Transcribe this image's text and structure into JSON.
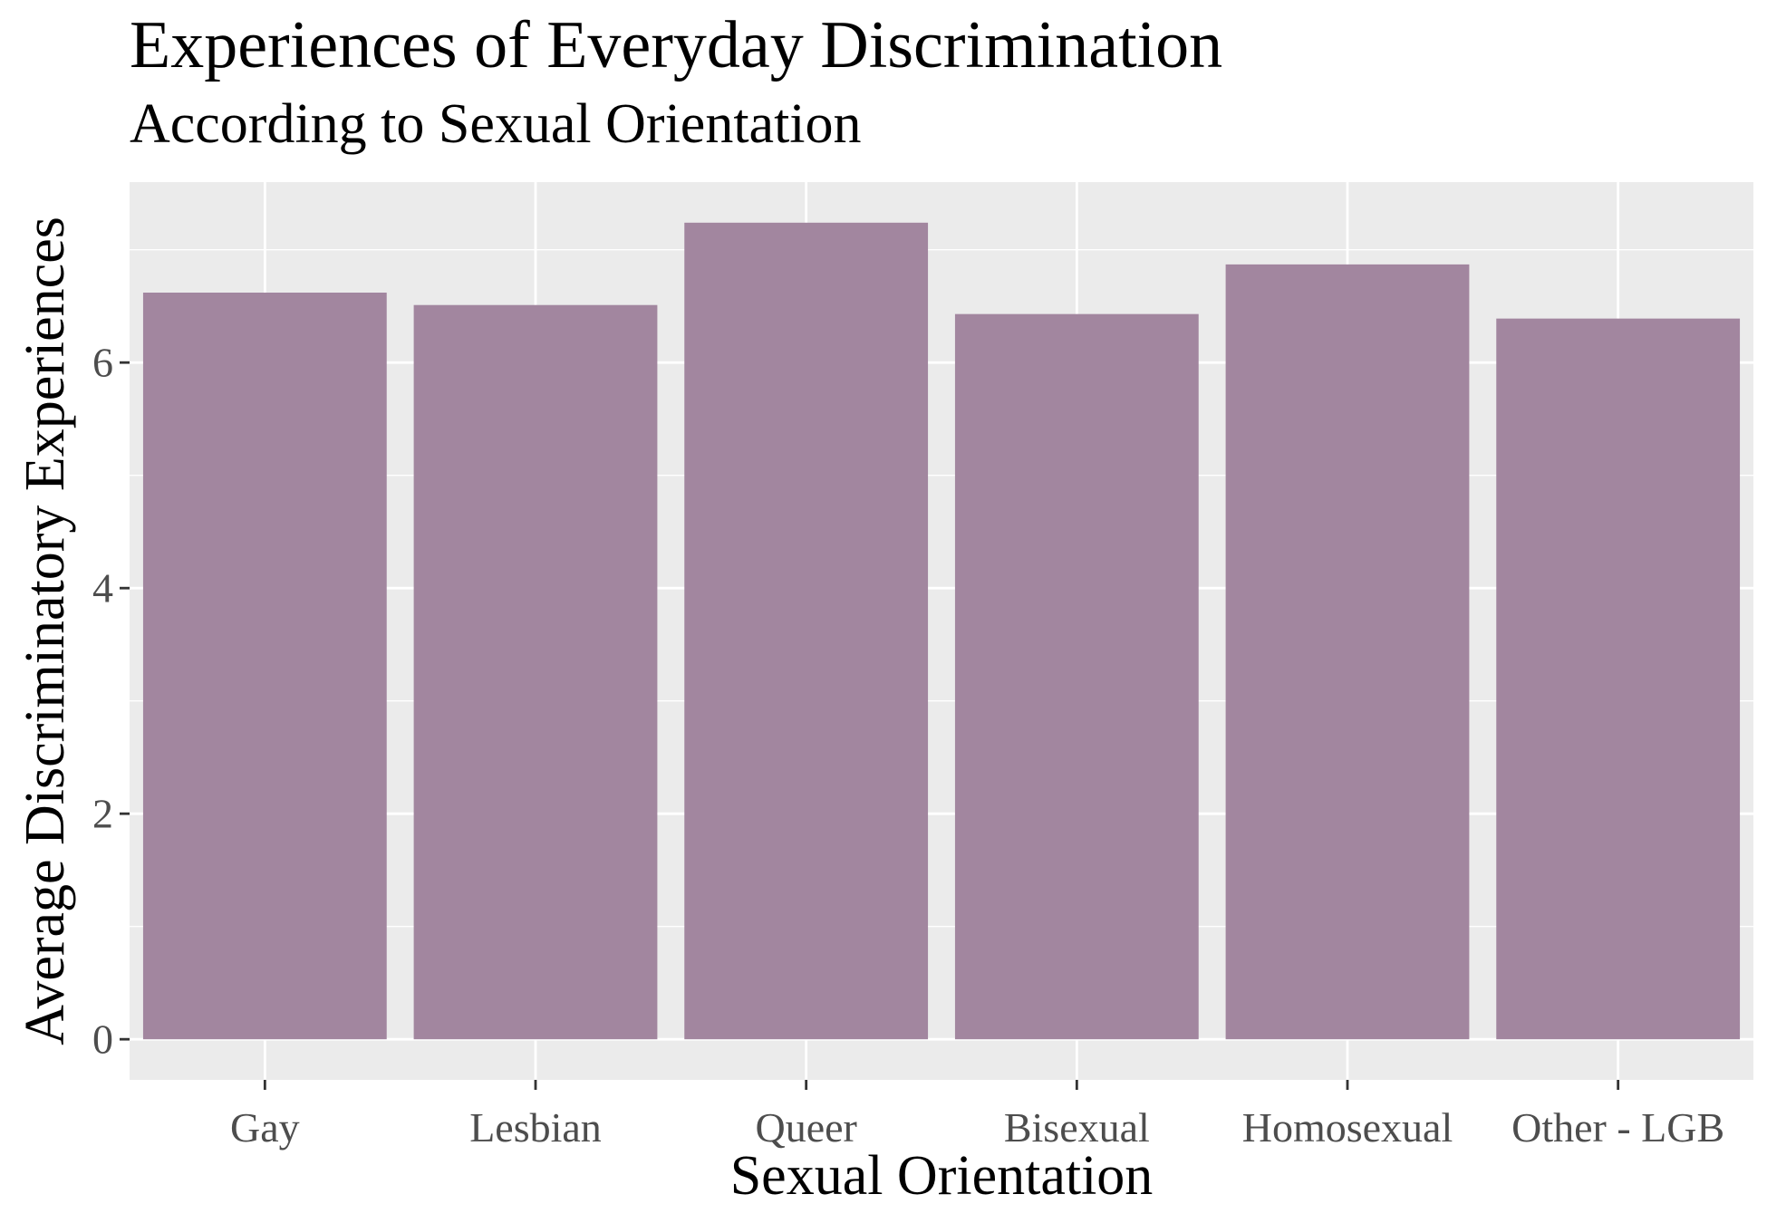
{
  "chart_data": {
    "type": "bar",
    "title": "Experiences of Everyday Discrimination",
    "subtitle": "According to Sexual Orientation",
    "xlabel": "Sexual Orientation",
    "ylabel": "Average Discriminatory Experiences",
    "categories": [
      "Gay",
      "Lesbian",
      "Queer",
      "Bisexual",
      "Homosexual",
      "Other - LGB"
    ],
    "values": [
      6.62,
      6.51,
      7.24,
      6.43,
      6.87,
      6.39
    ],
    "ylim": [
      -0.36,
      7.6
    ],
    "yticks": [
      0,
      2,
      4,
      6
    ],
    "ytick_labels": [
      "0",
      "2",
      "4",
      "6"
    ],
    "grid": true,
    "legend": "none",
    "colors": {
      "bar": "#a2869f",
      "panel": "#ebebeb",
      "gridline": "#ffffff",
      "tick_text": "#4d4d4d",
      "tick_mark": "#333333"
    }
  }
}
